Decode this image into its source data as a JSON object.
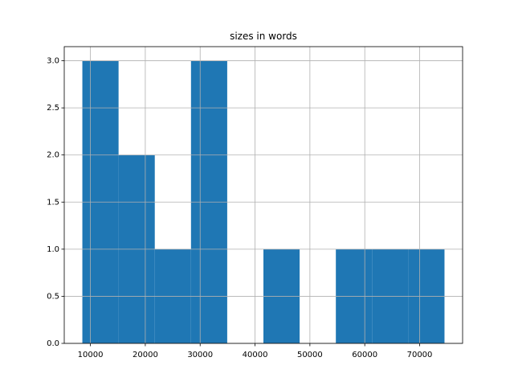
{
  "chart_data": {
    "type": "histogram",
    "title": "sizes in words",
    "bins": [
      8530,
      15130,
      21730,
      28330,
      34930,
      41530,
      48130,
      54730,
      61330,
      67930,
      74530
    ],
    "values": [
      3,
      2,
      1,
      3,
      0,
      1,
      0,
      1,
      1,
      1
    ],
    "color": "#1f77b4",
    "xlim": [
      5230,
      77830
    ],
    "xticks": [
      10000,
      20000,
      30000,
      40000,
      50000,
      60000,
      70000
    ],
    "ylim": [
      0,
      3.15
    ],
    "yticks": [
      {
        "value": 0,
        "label": "0.0"
      },
      {
        "value": 0.5,
        "label": "0.5"
      },
      {
        "value": 1,
        "label": "1.0"
      },
      {
        "value": 1.5,
        "label": "1.5"
      },
      {
        "value": 2,
        "label": "2.0"
      },
      {
        "value": 2.5,
        "label": "2.5"
      },
      {
        "value": 3,
        "label": "3.0"
      }
    ],
    "grid": true
  }
}
